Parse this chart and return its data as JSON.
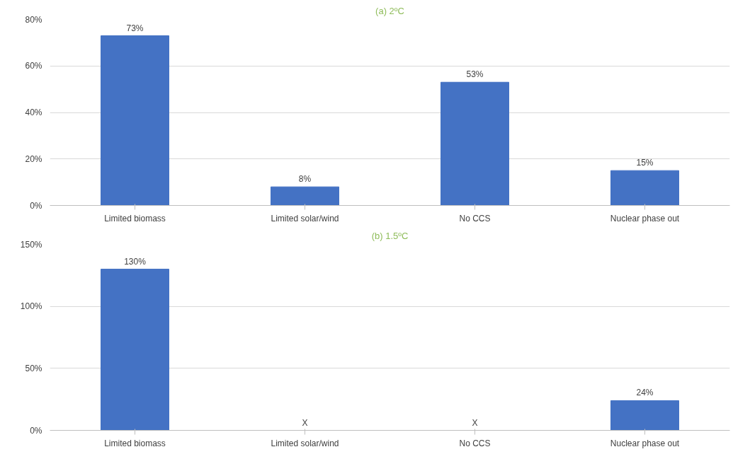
{
  "chart_data": [
    {
      "type": "bar",
      "title": "(a) 2ºC",
      "categories": [
        "Limited biomass",
        "Limited solar/wind",
        "No CCS",
        "Nuclear phase out"
      ],
      "values": [
        73,
        8,
        53,
        15
      ],
      "value_labels": [
        "73%",
        "8%",
        "53%",
        "15%"
      ],
      "color": "#4472c4",
      "ylim": [
        0,
        80
      ],
      "yticks": [
        {
          "value": 0,
          "label": "0%"
        },
        {
          "value": 20,
          "label": "20%"
        },
        {
          "value": 40,
          "label": "40%"
        },
        {
          "value": 60,
          "label": "60%"
        },
        {
          "value": 80,
          "label": "80%"
        }
      ],
      "grid": "y"
    },
    {
      "type": "bar",
      "title": "(b) 1.5ºC",
      "categories": [
        "Limited biomass",
        "Limited solar/wind",
        "No CCS",
        "Nuclear phase out"
      ],
      "values": [
        130,
        null,
        null,
        24
      ],
      "value_labels": [
        "130%",
        "X",
        "X",
        "24%"
      ],
      "color": "#4472c4",
      "ylim": [
        0,
        150
      ],
      "yticks": [
        {
          "value": 0,
          "label": "0%"
        },
        {
          "value": 50,
          "label": "50%"
        },
        {
          "value": 100,
          "label": "100%"
        },
        {
          "value": 150,
          "label": "150%"
        }
      ],
      "grid": "y"
    }
  ]
}
